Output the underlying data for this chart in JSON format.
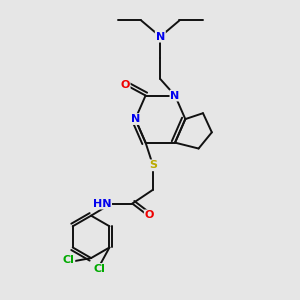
{
  "bg_color": "#e6e6e6",
  "atom_colors": {
    "N": "#0000ee",
    "O": "#ee0000",
    "S": "#bbaa00",
    "Cl": "#00aa00",
    "C": "#111111",
    "H": "#667788"
  },
  "bond_color": "#111111",
  "bond_width": 1.4,
  "figsize": [
    3.0,
    3.0
  ],
  "dpi": 100
}
